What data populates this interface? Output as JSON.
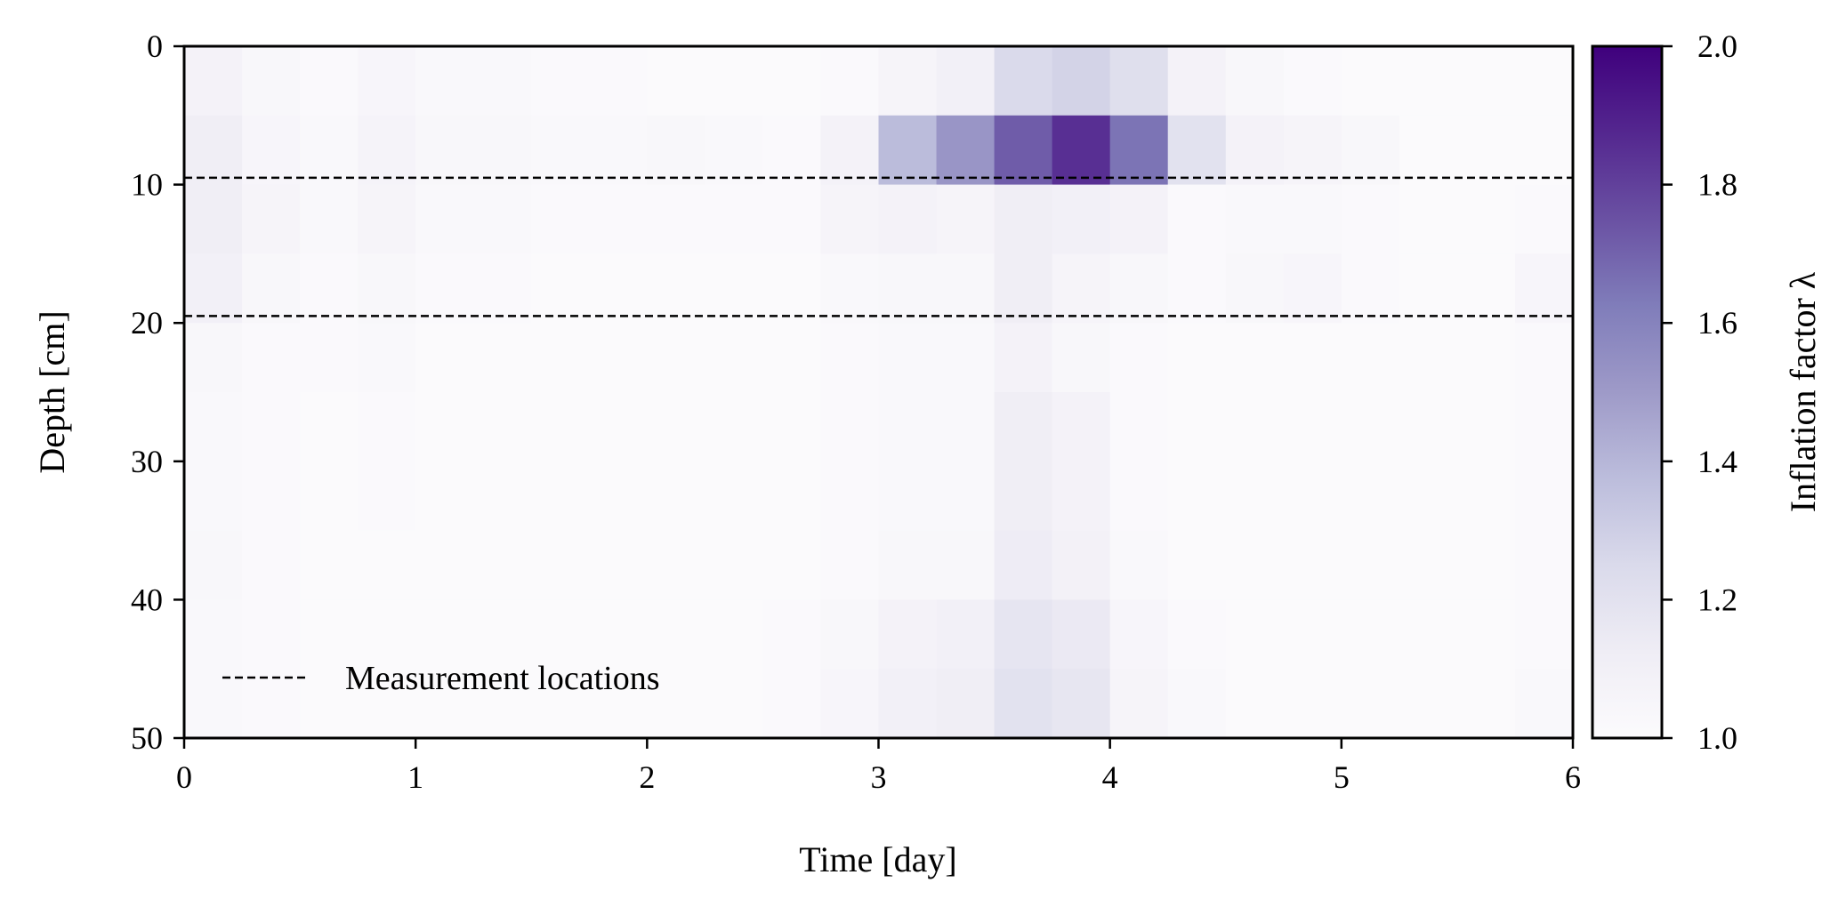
{
  "chart_data": {
    "type": "heatmap",
    "xlabel": "Time [day]",
    "ylabel": "Depth [cm]",
    "xlim": [
      0,
      6
    ],
    "ylim": [
      50,
      0
    ],
    "xticks": [
      "0",
      "1",
      "2",
      "3",
      "4",
      "5",
      "6"
    ],
    "yticks": [
      "0",
      "10",
      "20",
      "30",
      "40",
      "50"
    ],
    "time_bin_edges_start": 0,
    "time_bin_width": 0.25,
    "depth_bin_width": 5,
    "values": [
      [
        1.08,
        1.04,
        1.02,
        1.05,
        1.03,
        1.03,
        1.02,
        1.02,
        1.01,
        1.01,
        1.01,
        1.02,
        1.06,
        1.1,
        1.25,
        1.28,
        1.22,
        1.08,
        1.04,
        1.02,
        1.01,
        1.01,
        1.01,
        1.01
      ],
      [
        1.12,
        1.05,
        1.03,
        1.07,
        1.04,
        1.04,
        1.03,
        1.03,
        1.04,
        1.03,
        1.02,
        1.08,
        1.38,
        1.52,
        1.72,
        1.85,
        1.65,
        1.2,
        1.08,
        1.06,
        1.04,
        1.01,
        1.01,
        1.01
      ],
      [
        1.12,
        1.06,
        1.03,
        1.06,
        1.03,
        1.03,
        1.02,
        1.02,
        1.02,
        1.02,
        1.02,
        1.06,
        1.08,
        1.06,
        1.12,
        1.1,
        1.08,
        1.02,
        1.03,
        1.03,
        1.02,
        1.01,
        1.01,
        1.02
      ],
      [
        1.1,
        1.04,
        1.02,
        1.04,
        1.02,
        1.02,
        1.01,
        1.01,
        1.01,
        1.01,
        1.01,
        1.03,
        1.04,
        1.04,
        1.12,
        1.06,
        1.04,
        1.02,
        1.04,
        1.05,
        1.02,
        1.01,
        1.01,
        1.05
      ],
      [
        1.04,
        1.02,
        1.02,
        1.03,
        1.01,
        1.01,
        1.01,
        1.01,
        1.01,
        1.01,
        1.01,
        1.02,
        1.03,
        1.03,
        1.08,
        1.04,
        1.02,
        1.01,
        1.01,
        1.01,
        1.01,
        1.01,
        1.01,
        1.02
      ],
      [
        1.03,
        1.02,
        1.01,
        1.02,
        1.01,
        1.01,
        1.01,
        1.01,
        1.01,
        1.01,
        1.01,
        1.02,
        1.03,
        1.03,
        1.12,
        1.08,
        1.02,
        1.01,
        1.01,
        1.01,
        1.01,
        1.01,
        1.01,
        1.02
      ],
      [
        1.03,
        1.02,
        1.01,
        1.02,
        1.01,
        1.01,
        1.01,
        1.01,
        1.01,
        1.01,
        1.01,
        1.02,
        1.03,
        1.03,
        1.12,
        1.08,
        1.02,
        1.01,
        1.01,
        1.01,
        1.01,
        1.01,
        1.01,
        1.02
      ],
      [
        1.04,
        1.02,
        1.01,
        1.01,
        1.01,
        1.01,
        1.01,
        1.01,
        1.01,
        1.01,
        1.01,
        1.02,
        1.04,
        1.04,
        1.13,
        1.09,
        1.03,
        1.01,
        1.01,
        1.01,
        1.01,
        1.01,
        1.01,
        1.02
      ],
      [
        1.03,
        1.02,
        1.01,
        1.01,
        1.01,
        1.01,
        1.01,
        1.01,
        1.01,
        1.01,
        1.02,
        1.04,
        1.08,
        1.1,
        1.18,
        1.15,
        1.05,
        1.02,
        1.01,
        1.01,
        1.01,
        1.01,
        1.01,
        1.02
      ],
      [
        1.03,
        1.02,
        1.01,
        1.01,
        1.01,
        1.01,
        1.01,
        1.01,
        1.01,
        1.01,
        1.02,
        1.05,
        1.1,
        1.12,
        1.2,
        1.17,
        1.06,
        1.03,
        1.01,
        1.01,
        1.01,
        1.01,
        1.01,
        1.03
      ]
    ],
    "measurement_depths": [
      9.5,
      19.5
    ],
    "legend": {
      "entries": [
        "Measurement locations"
      ],
      "placement": "lower-left"
    },
    "colorbar": {
      "label": "Inflation factor λ",
      "range": [
        1.0,
        2.0
      ],
      "ticks": [
        "1.0",
        "1.2",
        "1.4",
        "1.6",
        "1.8",
        "2.0"
      ],
      "colormap": [
        "#fcfbfd",
        "#efedf5",
        "#dadaeb",
        "#bcbddc",
        "#9e9ac8",
        "#807dba",
        "#6a51a3",
        "#54278f",
        "#3f007d"
      ]
    }
  }
}
